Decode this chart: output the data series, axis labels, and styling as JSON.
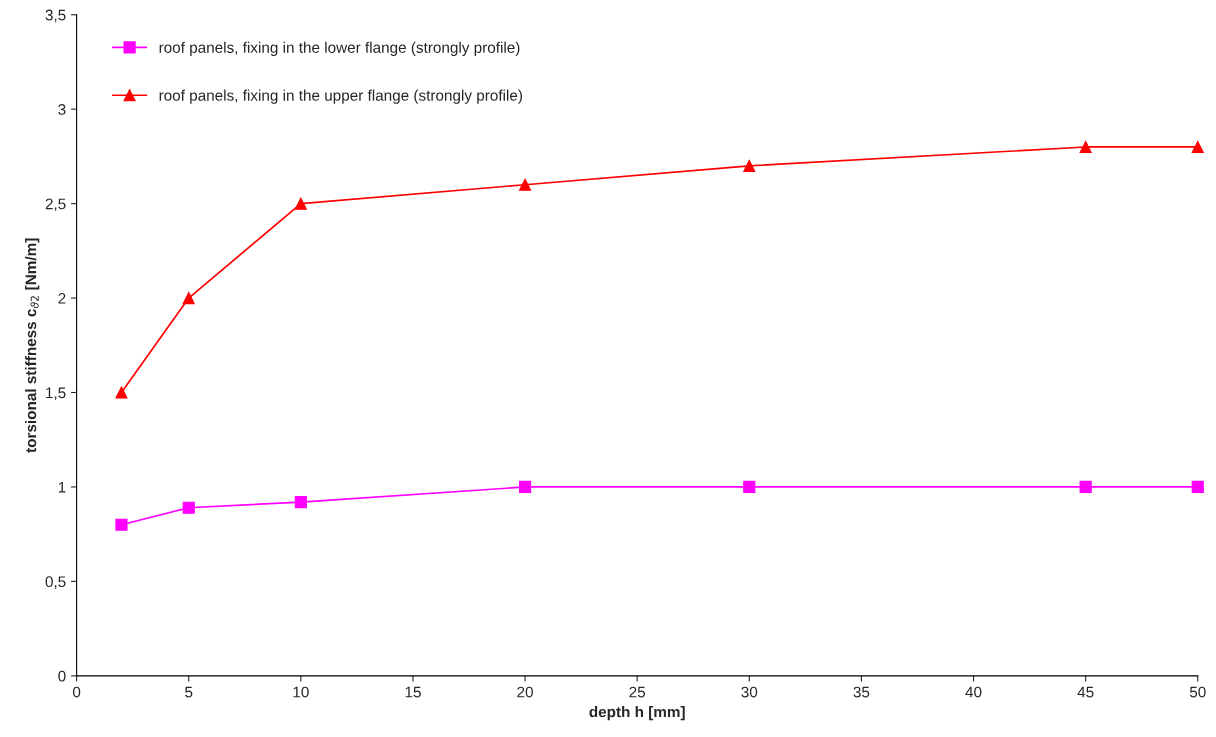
{
  "chart_data": {
    "type": "line",
    "xlabel": "depth h [mm]",
    "ylabel": "torsional stiffness c$_{ϑ2}$ [Nm/m]",
    "x": [
      2,
      5,
      10,
      20,
      30,
      45,
      50
    ],
    "series": [
      {
        "name": "roof panels, fixing in the lower flange (strongly profile)",
        "color": "#ff00ff",
        "marker": "square",
        "values": [
          0.8,
          0.89,
          0.92,
          1.0,
          1.0,
          1.0,
          1.0
        ]
      },
      {
        "name": "roof panels, fixing in the upper flange (strongly profile)",
        "color": "#ff0000",
        "marker": "triangle",
        "values": [
          1.5,
          2.0,
          2.5,
          2.6,
          2.7,
          2.8,
          2.8
        ]
      }
    ],
    "xlim": [
      0,
      50
    ],
    "xticks": [
      0,
      5,
      10,
      15,
      20,
      25,
      30,
      35,
      40,
      45,
      50
    ],
    "ylim": [
      0,
      3.5
    ],
    "yticks": [
      0,
      {
        "value": 0.5,
        "label": "0,5"
      },
      1,
      {
        "value": 1.5,
        "label": "1,5"
      },
      2,
      {
        "value": 2.5,
        "label": "2,5"
      },
      3,
      {
        "value": 3.5,
        "label": "3,5"
      }
    ],
    "grid": false,
    "legend": "top left",
    "line_style": "solid"
  }
}
